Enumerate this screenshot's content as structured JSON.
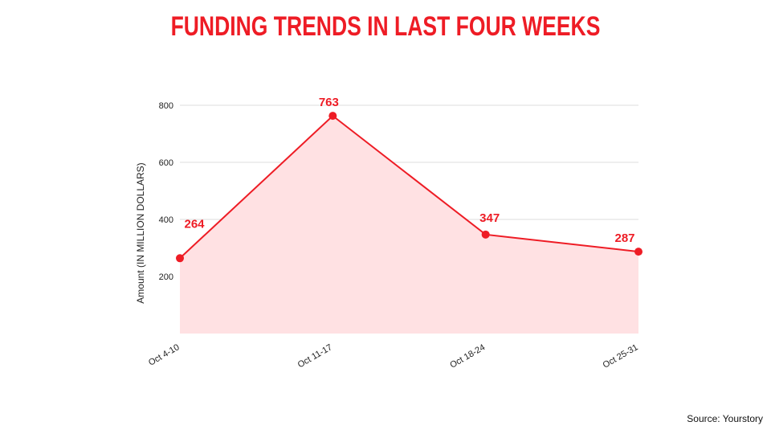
{
  "title": "FUNDING TRENDS IN LAST FOUR WEEKS",
  "source": "Source: Yourstory",
  "colors": {
    "accent": "#ee1c25",
    "fill": "#ffe1e3",
    "grid": "#dddddd",
    "text": "#222222"
  },
  "chart_data": {
    "type": "area",
    "title": "FUNDING TRENDS IN LAST FOUR WEEKS",
    "xlabel": "",
    "ylabel": "Amount (IN MILLION DOLLARS)",
    "categories": [
      "Oct 4-10",
      "Oct 11-17",
      "Oct 18-24",
      "Oct 25-31"
    ],
    "values": [
      264,
      763,
      347,
      287
    ],
    "data_labels": [
      "264",
      "763",
      "347",
      "287"
    ],
    "yticks": [
      200,
      400,
      600,
      800
    ],
    "ylim": [
      0,
      800
    ],
    "grid": true,
    "legend": "none"
  }
}
